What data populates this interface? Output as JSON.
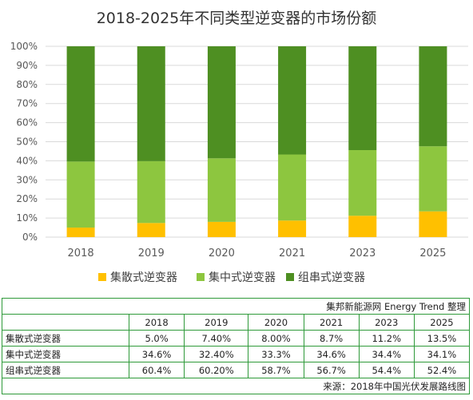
{
  "chart_data": {
    "type": "bar",
    "stacked": true,
    "title": "2018-2025年不同类型逆变器的市场份额",
    "categories": [
      "2018",
      "2019",
      "2020",
      "2021",
      "2023",
      "2025"
    ],
    "y_ticks": [
      "0%",
      "10%",
      "20%",
      "30%",
      "40%",
      "50%",
      "60%",
      "70%",
      "80%",
      "90%",
      "100%"
    ],
    "ylim": [
      0,
      100
    ],
    "grid": true,
    "legend_position": "bottom",
    "series": [
      {
        "name": "集散式逆变器",
        "color": "#ffc000",
        "values": [
          5.0,
          7.4,
          8.0,
          8.7,
          11.2,
          13.5
        ]
      },
      {
        "name": "集中式逆变器",
        "color": "#8dc63f",
        "values": [
          34.6,
          32.4,
          33.3,
          34.6,
          34.4,
          34.1
        ]
      },
      {
        "name": "组串式逆变器",
        "color": "#4e8f22",
        "values": [
          60.4,
          60.2,
          58.7,
          56.7,
          54.4,
          52.4
        ]
      }
    ]
  },
  "table": {
    "header_note": "集邦新能源网 Energy Trend 整理",
    "years": [
      "2018",
      "2019",
      "2020",
      "2021",
      "2023",
      "2025"
    ],
    "rows": [
      {
        "label": "集散式逆变器",
        "values": [
          "5.0%",
          "7.40%",
          "8.00%",
          "8.7%",
          "11.2%",
          "13.5%"
        ]
      },
      {
        "label": "集中式逆变器",
        "values": [
          "34.6%",
          "32.40%",
          "33.3%",
          "34.6%",
          "34.4%",
          "34.1%"
        ]
      },
      {
        "label": "组串式逆变器",
        "values": [
          "60.4%",
          "60.20%",
          "58.7%",
          "56.7%",
          "54.4%",
          "52.4%"
        ]
      }
    ],
    "source_note": "来源：2018年中国光伏发展路线图"
  }
}
